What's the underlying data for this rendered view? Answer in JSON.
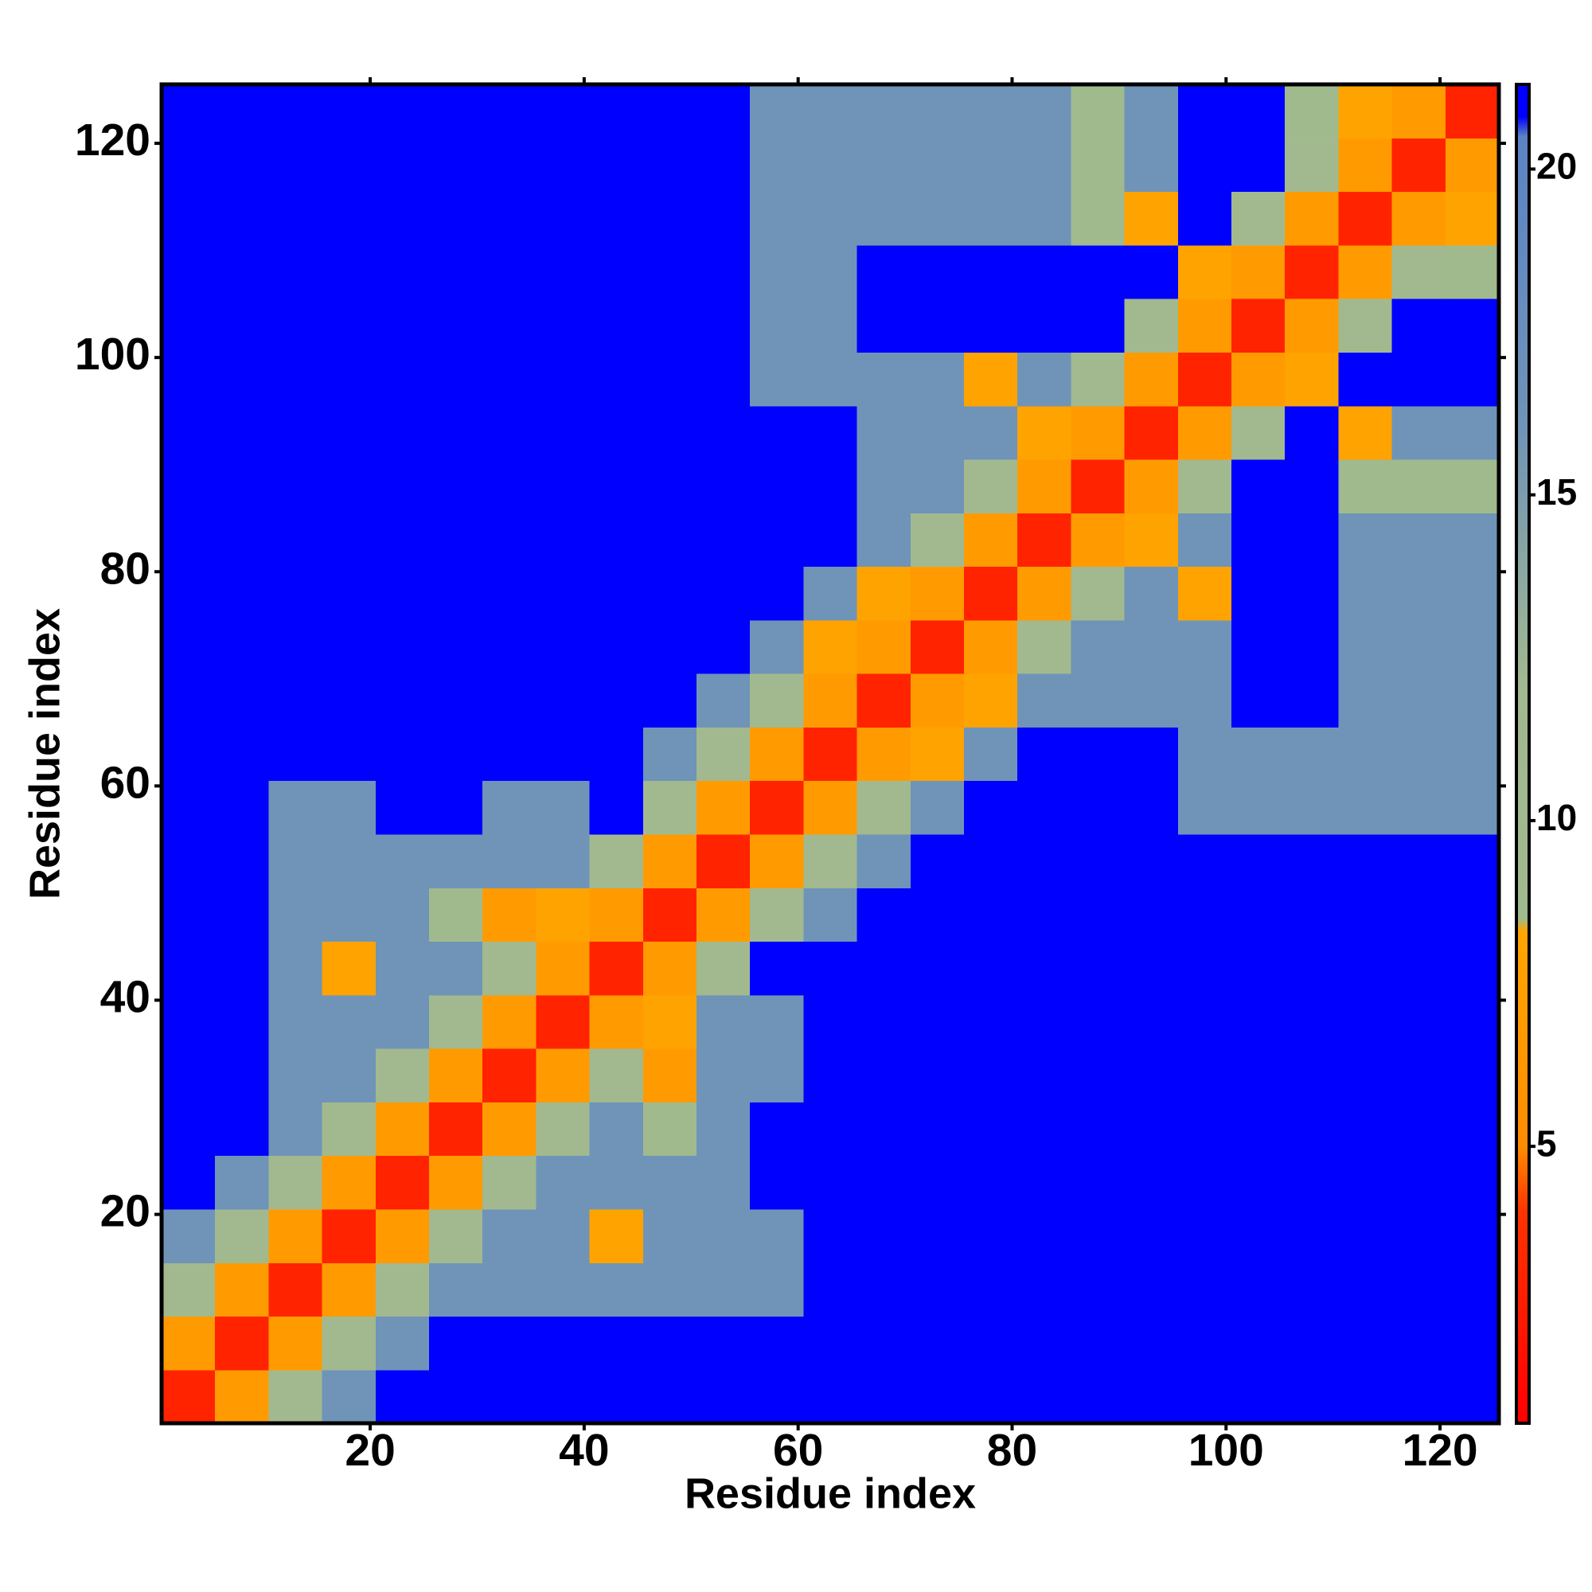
{
  "chart_data": {
    "type": "heatmap",
    "x_label": "Residue index",
    "y_label": "Residue index",
    "xbins": [
      0.5,
      5.5,
      10.5,
      15.5,
      20.5,
      25.5,
      30.5,
      35.5,
      40.5,
      45.5,
      50.5,
      55.5,
      60.5,
      65.5,
      70.5,
      75.5,
      80.5,
      85.5,
      90.5,
      95.5,
      100.5,
      105.5,
      110.5,
      115.5,
      120.5,
      125.5
    ],
    "ybins": [
      0.5,
      5.5,
      10.5,
      15.5,
      20.5,
      25.5,
      30.5,
      35.5,
      40.5,
      45.5,
      50.5,
      55.5,
      60.5,
      65.5,
      70.5,
      75.5,
      80.5,
      85.5,
      90.5,
      95.5,
      100.5,
      105.5,
      110.5,
      115.5,
      120.5,
      125.5
    ],
    "xlim": [
      0.5,
      125.5
    ],
    "ylim": [
      0.5,
      125.5
    ],
    "xticks": [
      20,
      40,
      60,
      80,
      100,
      120
    ],
    "yticks": [
      20,
      40,
      60,
      80,
      100,
      120
    ],
    "z": [
      [
        3,
        7,
        11,
        16,
        22,
        22,
        22,
        22,
        22,
        22,
        22,
        22,
        22,
        22,
        22,
        22,
        22,
        22,
        22,
        22,
        22,
        22,
        22,
        22,
        22
      ],
      [
        7,
        3,
        7,
        11,
        16,
        22,
        22,
        22,
        22,
        22,
        22,
        22,
        22,
        22,
        22,
        22,
        22,
        22,
        22,
        22,
        22,
        22,
        22,
        22,
        22
      ],
      [
        11,
        7,
        3,
        7,
        11,
        16,
        16,
        16,
        16,
        16,
        16,
        16,
        22,
        22,
        22,
        22,
        22,
        22,
        22,
        22,
        22,
        22,
        22,
        22,
        22
      ],
      [
        16,
        11,
        7,
        3,
        7,
        11,
        16,
        16,
        8,
        16,
        16,
        16,
        22,
        22,
        22,
        22,
        22,
        22,
        22,
        22,
        22,
        22,
        22,
        22,
        22
      ],
      [
        22,
        16,
        11,
        7,
        3,
        7,
        11,
        16,
        16,
        16,
        16,
        22,
        22,
        22,
        22,
        22,
        22,
        22,
        22,
        22,
        22,
        22,
        22,
        22,
        22
      ],
      [
        22,
        22,
        16,
        11,
        7,
        3,
        7,
        11,
        16,
        9,
        16,
        22,
        22,
        22,
        22,
        22,
        22,
        22,
        22,
        22,
        22,
        22,
        22,
        22,
        22
      ],
      [
        22,
        22,
        16,
        16,
        11,
        7,
        3,
        7,
        11,
        7,
        16,
        16,
        22,
        22,
        22,
        22,
        22,
        22,
        22,
        22,
        22,
        22,
        22,
        22,
        22
      ],
      [
        22,
        22,
        16,
        16,
        16,
        11,
        7,
        3,
        7,
        8,
        16,
        16,
        22,
        22,
        22,
        22,
        22,
        22,
        22,
        22,
        22,
        22,
        22,
        22,
        22
      ],
      [
        22,
        22,
        16,
        8,
        16,
        16,
        11,
        7,
        3,
        7,
        11,
        22,
        22,
        22,
        22,
        22,
        22,
        22,
        22,
        22,
        22,
        22,
        22,
        22,
        22
      ],
      [
        22,
        22,
        16,
        16,
        16,
        9,
        7,
        8,
        7,
        3,
        7,
        11,
        16,
        22,
        22,
        22,
        22,
        22,
        22,
        22,
        22,
        22,
        22,
        22,
        22
      ],
      [
        22,
        22,
        16,
        16,
        16,
        16,
        16,
        16,
        11,
        7,
        3,
        7,
        11,
        16,
        22,
        22,
        22,
        22,
        22,
        22,
        22,
        22,
        22,
        22,
        22
      ],
      [
        22,
        22,
        16,
        16,
        22,
        22,
        16,
        16,
        22,
        11,
        7,
        3,
        7,
        11,
        16,
        22,
        22,
        22,
        22,
        16,
        16,
        16,
        16,
        16,
        16
      ],
      [
        22,
        22,
        22,
        22,
        22,
        22,
        22,
        22,
        22,
        16,
        11,
        7,
        3,
        7,
        8,
        16,
        22,
        22,
        22,
        16,
        16,
        16,
        16,
        16,
        16
      ],
      [
        22,
        22,
        22,
        22,
        22,
        22,
        22,
        22,
        22,
        22,
        16,
        11,
        7,
        3,
        7,
        8,
        16,
        16,
        16,
        16,
        22,
        22,
        16,
        16,
        16
      ],
      [
        22,
        22,
        22,
        22,
        22,
        22,
        22,
        22,
        22,
        22,
        22,
        16,
        8,
        7,
        3,
        7,
        11,
        16,
        16,
        16,
        22,
        22,
        16,
        16,
        16
      ],
      [
        22,
        22,
        22,
        22,
        22,
        22,
        22,
        22,
        22,
        22,
        22,
        22,
        16,
        8,
        7,
        3,
        7,
        11,
        16,
        8,
        22,
        22,
        16,
        16,
        16
      ],
      [
        22,
        22,
        22,
        22,
        22,
        22,
        22,
        22,
        22,
        22,
        22,
        22,
        22,
        16,
        11,
        7,
        3,
        7,
        8,
        16,
        22,
        22,
        16,
        16,
        16
      ],
      [
        22,
        22,
        22,
        22,
        22,
        22,
        22,
        22,
        22,
        22,
        22,
        22,
        22,
        16,
        16,
        11,
        7,
        3,
        7,
        11,
        22,
        22,
        9,
        9,
        9
      ],
      [
        22,
        22,
        22,
        22,
        22,
        22,
        22,
        22,
        22,
        22,
        22,
        22,
        22,
        16,
        16,
        16,
        8,
        7,
        3,
        7,
        11,
        22,
        8,
        16,
        16
      ],
      [
        22,
        22,
        22,
        22,
        22,
        22,
        22,
        22,
        22,
        22,
        22,
        16,
        16,
        16,
        16,
        8,
        16,
        11,
        7,
        3,
        7,
        8,
        22,
        22,
        22
      ],
      [
        22,
        22,
        22,
        22,
        22,
        22,
        22,
        22,
        22,
        22,
        22,
        16,
        16,
        22,
        22,
        22,
        22,
        22,
        11,
        7,
        3,
        7,
        11,
        22,
        22
      ],
      [
        22,
        22,
        22,
        22,
        22,
        22,
        22,
        22,
        22,
        22,
        22,
        16,
        16,
        22,
        22,
        22,
        22,
        22,
        22,
        8,
        7,
        3,
        7,
        11,
        9
      ],
      [
        22,
        22,
        22,
        22,
        22,
        22,
        22,
        22,
        22,
        22,
        22,
        16,
        16,
        16,
        16,
        16,
        16,
        9,
        8,
        22,
        11,
        7,
        3,
        7,
        8
      ],
      [
        22,
        22,
        22,
        22,
        22,
        22,
        22,
        22,
        22,
        22,
        22,
        16,
        16,
        16,
        16,
        16,
        16,
        9,
        16,
        22,
        22,
        11,
        7,
        3,
        7
      ],
      [
        22,
        22,
        22,
        22,
        22,
        22,
        22,
        22,
        22,
        22,
        22,
        16,
        16,
        16,
        16,
        16,
        16,
        9,
        16,
        22,
        22,
        9,
        8,
        7,
        3
      ]
    ],
    "colorbar": {
      "zlim": [
        0.75,
        21.3
      ],
      "ticks": [
        5,
        10,
        15,
        20
      ],
      "colorscale": [
        {
          "value": 0.75,
          "color": "#ff0000"
        },
        {
          "value": 4,
          "color": "#ff3300"
        },
        {
          "value": 5,
          "color": "#ff8c00"
        },
        {
          "value": 8.3,
          "color": "#ffa500"
        },
        {
          "value": 8.5,
          "color": "#9fba8e"
        },
        {
          "value": 12,
          "color": "#a3b98f"
        },
        {
          "value": 16,
          "color": "#6f94b8"
        },
        {
          "value": 20.5,
          "color": "#5b84c4"
        },
        {
          "value": 20.8,
          "color": "#0000ff"
        },
        {
          "value": 21.3,
          "color": "#0000ff"
        }
      ]
    }
  }
}
